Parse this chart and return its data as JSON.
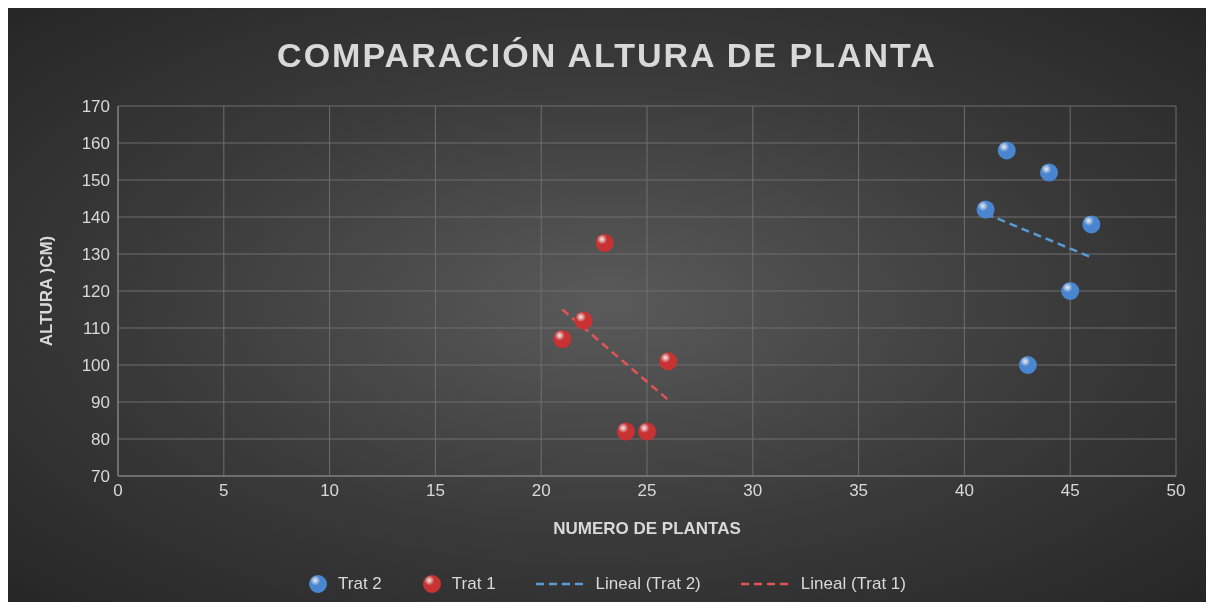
{
  "chart_data": {
    "type": "scatter",
    "title": "COMPARACIÓN ALTURA DE PLANTA",
    "xlabel": "NUMERO DE PLANTAS",
    "ylabel": "ALTURA )CM)",
    "series": [
      {
        "name": "Trat 2",
        "color": "#4a86d0",
        "x": [
          41,
          42,
          43,
          44,
          45,
          46
        ],
        "values": [
          142,
          158,
          100,
          152,
          120,
          138
        ]
      },
      {
        "name": "Trat 1",
        "color": "#c83232",
        "x": [
          21,
          22,
          23,
          24,
          25,
          26
        ],
        "values": [
          107,
          112,
          133,
          82,
          82,
          101
        ]
      },
      {
        "name": "Lineal (Trat 2)",
        "type": "line",
        "color": "#5b9bd5",
        "line_style": "dashed",
        "marker": "none",
        "x": [
          41,
          46
        ],
        "values": [
          140.9,
          129.1
        ]
      },
      {
        "name": "Lineal (Trat 1)",
        "type": "line",
        "color": "#e05555",
        "line_style": "dashed",
        "marker": "none",
        "x": [
          21,
          26
        ],
        "values": [
          115,
          90.6
        ]
      }
    ],
    "xlim": [
      0,
      50
    ],
    "xticks": [
      0,
      5,
      10,
      15,
      20,
      25,
      30,
      35,
      40,
      45,
      50
    ],
    "ylim": [
      70,
      170
    ],
    "yticks": [
      70,
      80,
      90,
      100,
      110,
      120,
      130,
      140,
      150,
      160,
      170
    ],
    "grid": true,
    "legend": "bottom",
    "marker": "circle"
  }
}
